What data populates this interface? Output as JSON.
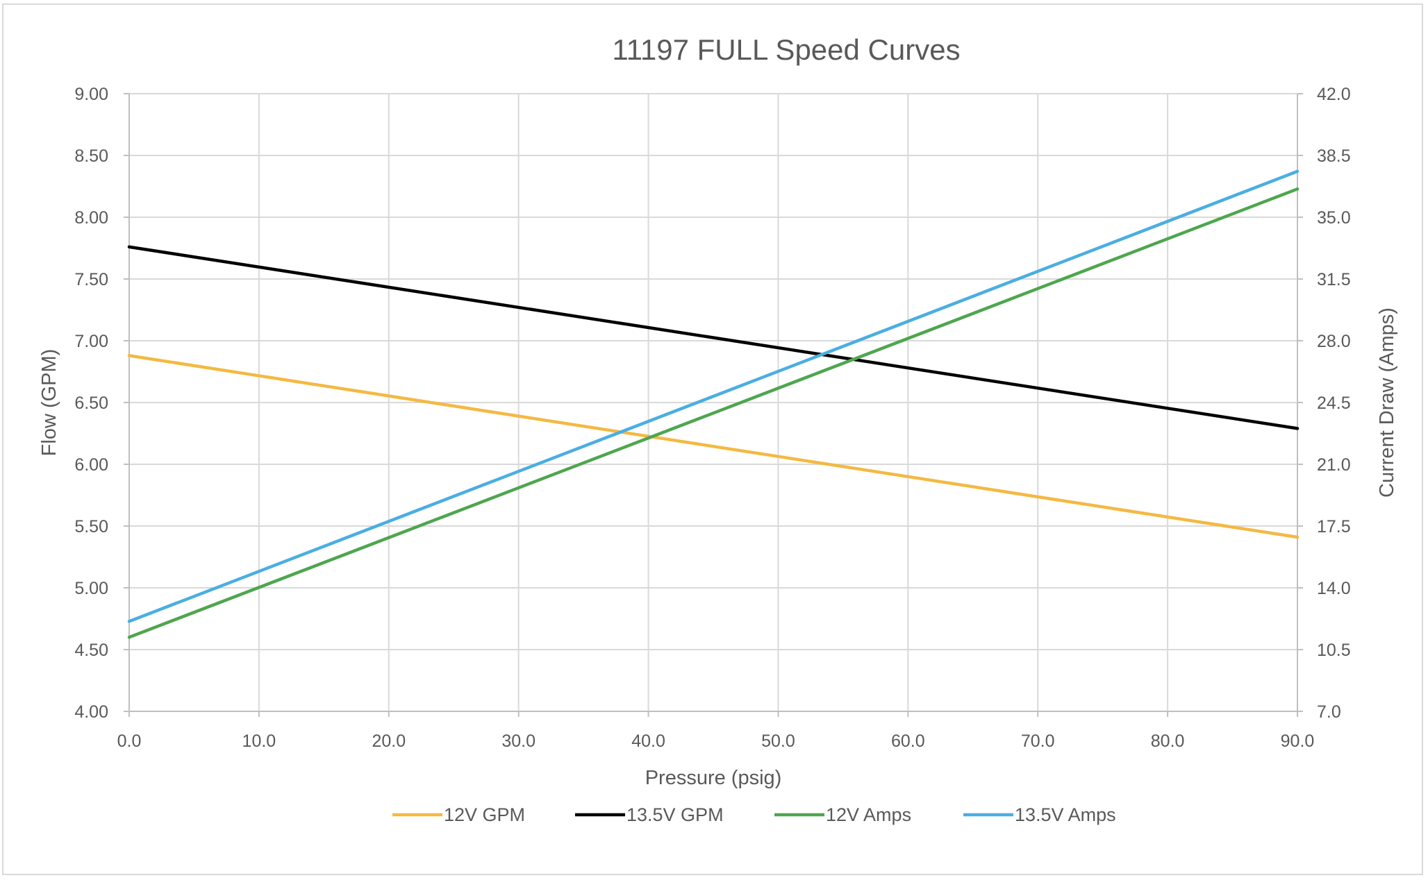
{
  "chart_data": {
    "type": "line",
    "title": "11197 FULL Speed Curves",
    "xlabel": "Pressure (psig)",
    "ylabel": "Flow (GPM)",
    "y2label": "Current Draw (Amps)",
    "xlim": [
      0,
      90
    ],
    "ylim": [
      4.0,
      9.0
    ],
    "y2lim": [
      7.0,
      42.0
    ],
    "x_ticks": [
      "0.0",
      "10.0",
      "20.0",
      "30.0",
      "40.0",
      "50.0",
      "60.0",
      "70.0",
      "80.0",
      "90.0"
    ],
    "y_ticks": [
      "4.00",
      "4.50",
      "5.00",
      "5.50",
      "6.00",
      "6.50",
      "7.00",
      "7.50",
      "8.00",
      "8.50",
      "9.00"
    ],
    "y2_ticks": [
      "7.0",
      "10.5",
      "14.0",
      "17.5",
      "21.0",
      "24.5",
      "28.0",
      "31.5",
      "35.0",
      "38.5",
      "42.0"
    ],
    "grid": true,
    "legend_position": "bottom",
    "series": [
      {
        "name": "12V GPM",
        "axis": "left",
        "color": "#f4b942",
        "x": [
          0,
          90
        ],
        "y": [
          6.88,
          5.41
        ]
      },
      {
        "name": "13.5V GPM",
        "axis": "left",
        "color": "#000000",
        "x": [
          0,
          90
        ],
        "y": [
          7.76,
          6.29
        ]
      },
      {
        "name": "12V Amps",
        "axis": "right",
        "color": "#4ea64e",
        "x": [
          0,
          90
        ],
        "y": [
          11.2,
          36.6
        ]
      },
      {
        "name": "13.5V Amps",
        "axis": "right",
        "color": "#4aaee3",
        "x": [
          0,
          90
        ],
        "y": [
          12.1,
          37.6
        ]
      }
    ]
  }
}
